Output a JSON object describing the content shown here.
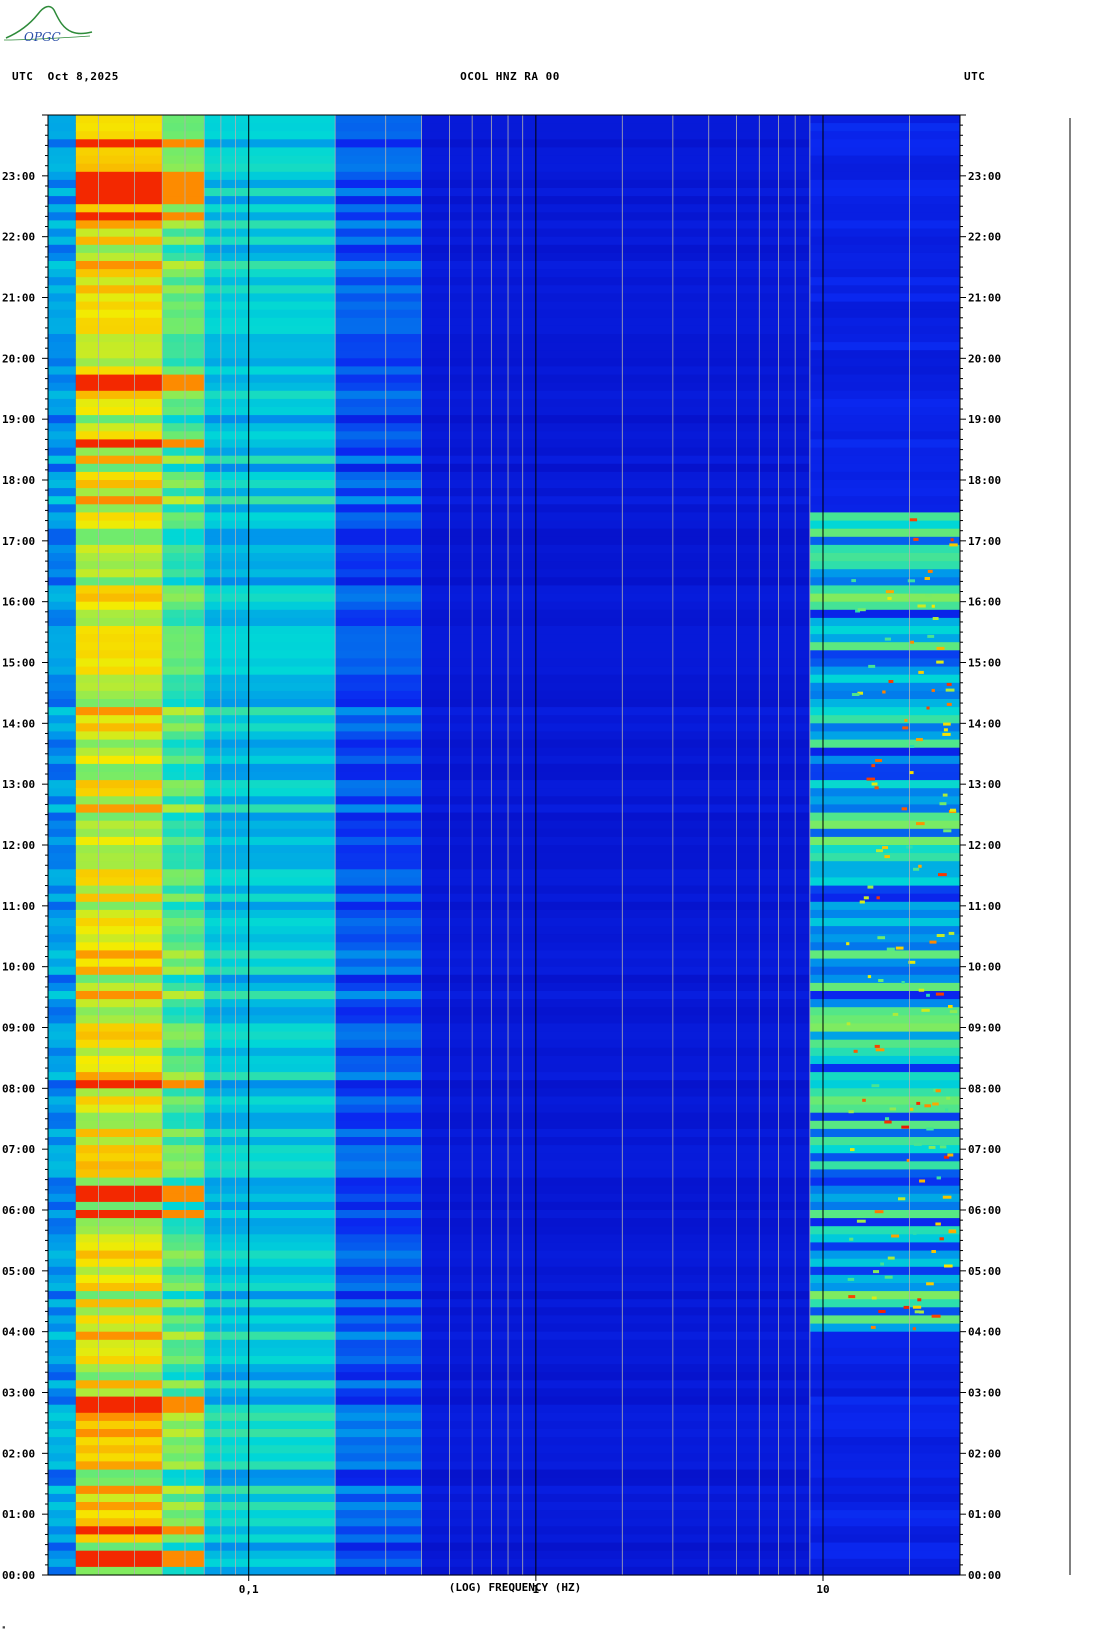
{
  "header": {
    "left": "UTC  Oct 8,2025",
    "center": "OCOL HNZ RA 00",
    "right": "UTC"
  },
  "logo": {
    "text": "OPGC"
  },
  "colors": {
    "background": "#0a1ae6",
    "low": "#0010c8",
    "mid": "#00d0d0",
    "high": "#f4ec00",
    "peak": "#ff2a00"
  },
  "chart_data": {
    "type": "heatmap",
    "title": "OCOL HNZ RA 00",
    "xlabel": "(LOG) FREQUENCY (HZ)",
    "ylabel": "UTC",
    "x_scale": "log",
    "xlim": [
      0.02,
      30
    ],
    "x_ticks": [
      {
        "value": 0.1,
        "label": "0,1"
      },
      {
        "value": 1,
        "label": "1"
      },
      {
        "value": 10,
        "label": "10"
      }
    ],
    "y_ticks": [
      "00:00",
      "01:00",
      "02:00",
      "03:00",
      "04:00",
      "05:00",
      "06:00",
      "07:00",
      "08:00",
      "09:00",
      "10:00",
      "11:00",
      "12:00",
      "13:00",
      "14:00",
      "15:00",
      "16:00",
      "17:00",
      "18:00",
      "19:00",
      "20:00",
      "21:00",
      "22:00",
      "23:00"
    ],
    "ylim_hours": [
      0,
      24
    ],
    "date": "Oct 8,2025",
    "bands": [
      {
        "f_min": 0.02,
        "f_max": 0.025,
        "level": 0.35
      },
      {
        "f_min": 0.025,
        "f_max": 0.05,
        "level": 0.75
      },
      {
        "f_min": 0.05,
        "f_max": 0.07,
        "level": 0.6
      },
      {
        "f_min": 0.07,
        "f_max": 0.2,
        "level": 0.45
      },
      {
        "f_min": 0.2,
        "f_max": 0.4,
        "level": 0.22
      },
      {
        "f_min": 0.4,
        "f_max": 9,
        "level": 0.05
      },
      {
        "f_min": 9,
        "f_max": 30,
        "level": 0.12
      }
    ],
    "high_frequency_activity": {
      "f_min": 10,
      "f_max": 30,
      "hours_active": [
        4,
        17.5
      ],
      "level": 0.55
    },
    "strong_events_hours": [
      0.15,
      0.3,
      0.7,
      2.8,
      5.9,
      6.2,
      6.35,
      8.1,
      18.6,
      19.6,
      22.3,
      22.6,
      22.8,
      22.95,
      23.55
    ]
  }
}
